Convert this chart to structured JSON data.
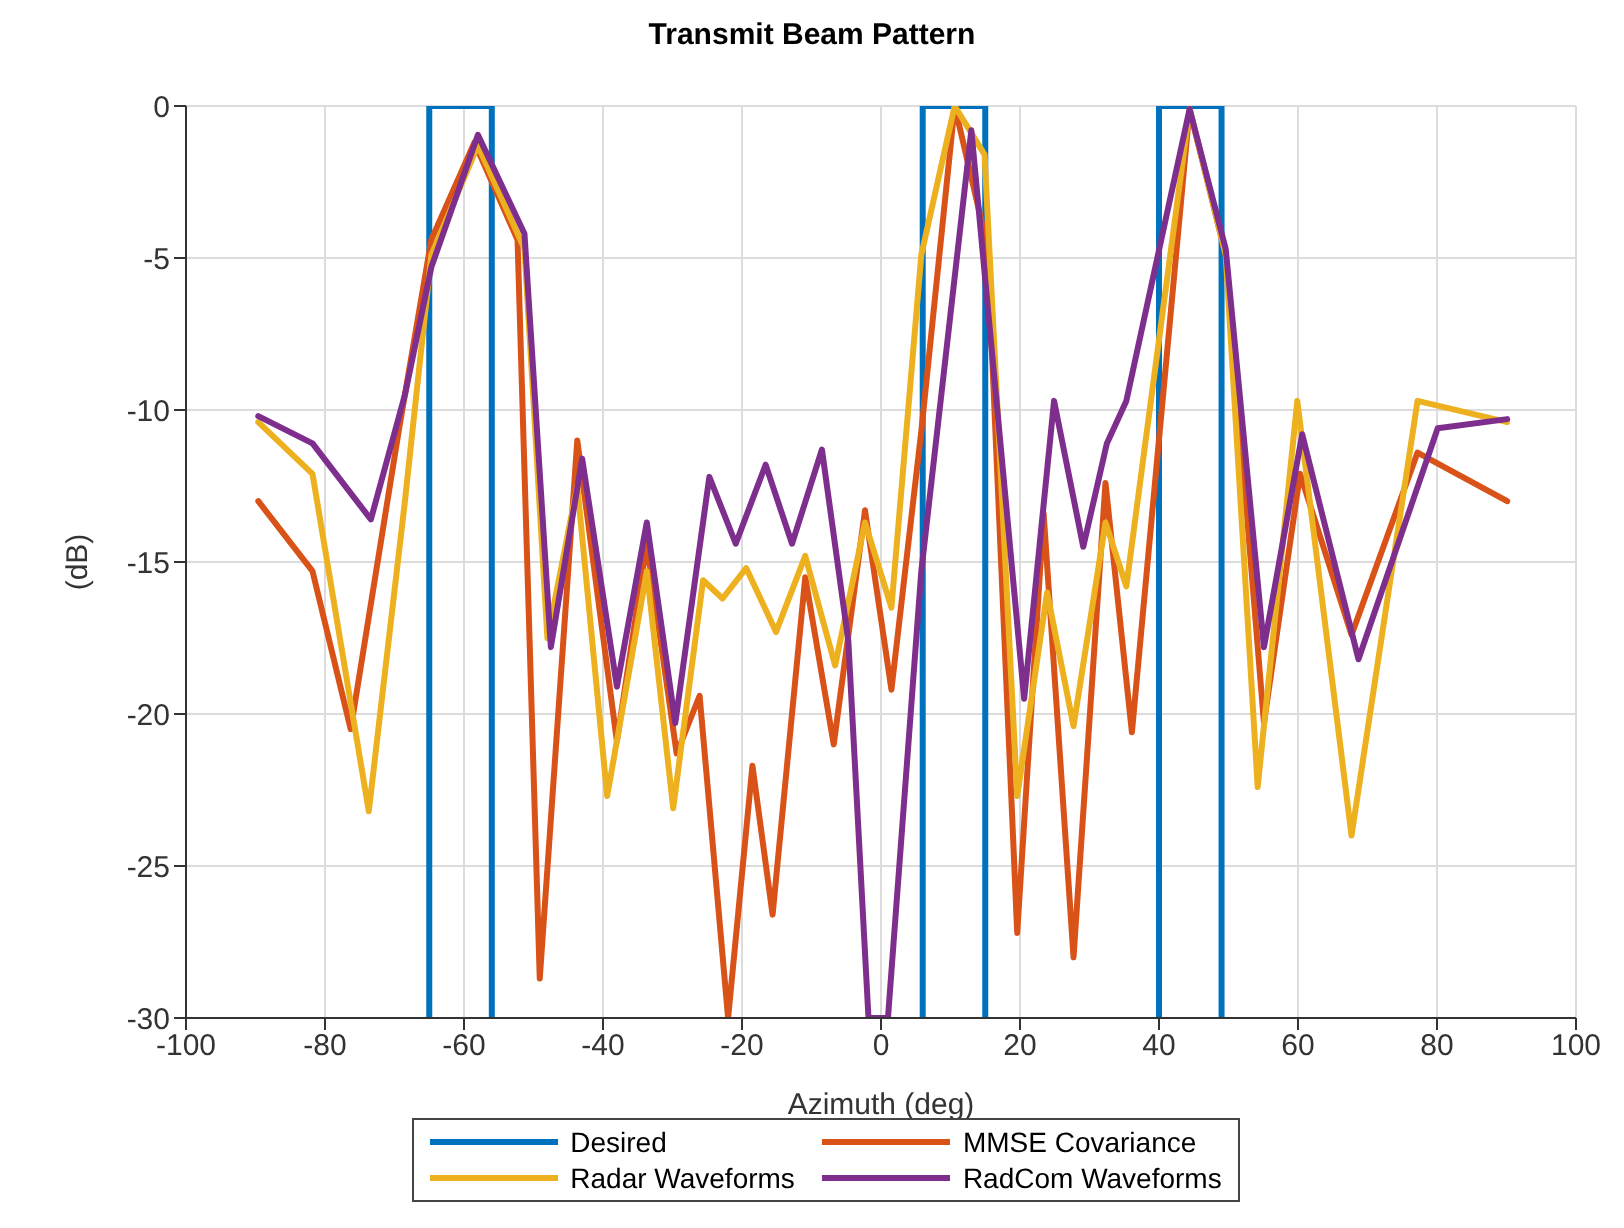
{
  "chart_data": {
    "type": "line",
    "title": "Transmit Beam Pattern",
    "xlabel": "Azimuth (deg)",
    "ylabel": "(dB)",
    "xlim": [
      -100,
      100
    ],
    "xticks": [
      -100,
      -80,
      -60,
      -40,
      -20,
      0,
      20,
      40,
      60,
      80,
      100
    ],
    "ylim": [
      -30,
      0
    ],
    "yticks": [
      -30,
      -25,
      -20,
      -15,
      -10,
      -5,
      0
    ],
    "grid": true,
    "legend": "bottom",
    "marker": "none",
    "line_style": "solid",
    "series": [
      {
        "name": "Desired",
        "color": "#0072bd",
        "x": [
          -65,
          -65,
          -56,
          -56,
          -25,
          6,
          6,
          15,
          15,
          27,
          40,
          40,
          49,
          49
        ],
        "values": [
          -30,
          0,
          0,
          -30,
          null,
          -30,
          0,
          0,
          -30,
          null,
          -30,
          0,
          0,
          -30
        ]
      },
      {
        "name": "MMSE Covariance",
        "color": "#d95319",
        "x": [
          -89.6,
          -81.8,
          -76.3,
          -69.4,
          -64.7,
          -58.5,
          -52.3,
          -49.1,
          -43.7,
          -38,
          -33.7,
          -29.4,
          -26.1,
          -22,
          -18.5,
          -15.6,
          -10.9,
          -6.8,
          -2.3,
          1.5,
          5.8,
          10.6,
          15.3,
          19.6,
          23.4,
          27.7,
          32.3,
          36.1,
          44.4,
          49.6,
          55.1,
          60.3,
          67.7,
          77.2,
          90.1
        ],
        "values": [
          -13,
          -15.3,
          -20.5,
          -10.7,
          -4.4,
          -1.2,
          -4.4,
          -28.7,
          -11,
          -20.9,
          -14.4,
          -21.3,
          -19.4,
          -30,
          -21.7,
          -26.6,
          -15.5,
          -21,
          -13.3,
          -19.2,
          -10.7,
          0,
          -4.6,
          -27.2,
          -13.4,
          -28,
          -12.4,
          -20.6,
          -0.1,
          -4.9,
          -20.3,
          -12.1,
          -17.4,
          -11.4,
          -13
        ]
      },
      {
        "name": "Radar Waveforms",
        "color": "#edb120",
        "x": [
          -89.6,
          -81.8,
          -73.7,
          -68.5,
          -64.7,
          -58,
          -51.3,
          -48,
          -43.7,
          -39.4,
          -33.7,
          -29.9,
          -25.6,
          -22.8,
          -19.4,
          -15.1,
          -10.9,
          -6.6,
          -2.3,
          1.5,
          5.8,
          10.6,
          14.9,
          19.6,
          23.9,
          27.7,
          32.3,
          35.3,
          44.4,
          49.6,
          54.2,
          59.9,
          67.7,
          77.2,
          90.1
        ],
        "values": [
          -10.4,
          -12.1,
          -23.2,
          -13,
          -4.9,
          -1.3,
          -4.7,
          -17.5,
          -12.5,
          -22.7,
          -15.3,
          -23.1,
          -15.6,
          -16.2,
          -15.2,
          -17.3,
          -14.8,
          -18.4,
          -13.7,
          -16.5,
          -4.9,
          0,
          -1.6,
          -22.7,
          -16,
          -20.4,
          -13.7,
          -15.8,
          -0.1,
          -4.9,
          -22.4,
          -9.7,
          -24,
          -9.7,
          -10.4
        ]
      },
      {
        "name": "RadCom Waveforms",
        "color": "#7e2f8e",
        "x": [
          -89.6,
          -81.8,
          -73.4,
          -68.5,
          -64.7,
          -58,
          -51.3,
          -47.5,
          -43,
          -38,
          -33.7,
          -29.6,
          -24.7,
          -20.9,
          -16.6,
          -12.8,
          -8.5,
          -4.7,
          -1.8,
          1,
          5.8,
          13,
          20.6,
          24.9,
          29.1,
          32.5,
          35.3,
          44.4,
          49.6,
          55.1,
          60.6,
          68.7,
          80.1,
          90.1
        ],
        "values": [
          -10.2,
          -11.1,
          -13.6,
          -9.5,
          -5.3,
          -0.95,
          -4.2,
          -17.8,
          -11.6,
          -19.1,
          -13.7,
          -20.3,
          -12.2,
          -14.4,
          -11.8,
          -14.4,
          -11.3,
          -17.6,
          -30,
          -30,
          -15.3,
          -0.8,
          -19.5,
          -9.7,
          -14.5,
          -11.1,
          -9.7,
          -0.1,
          -4.7,
          -17.8,
          -10.8,
          -18.2,
          -10.6,
          -10.3
        ]
      }
    ]
  }
}
